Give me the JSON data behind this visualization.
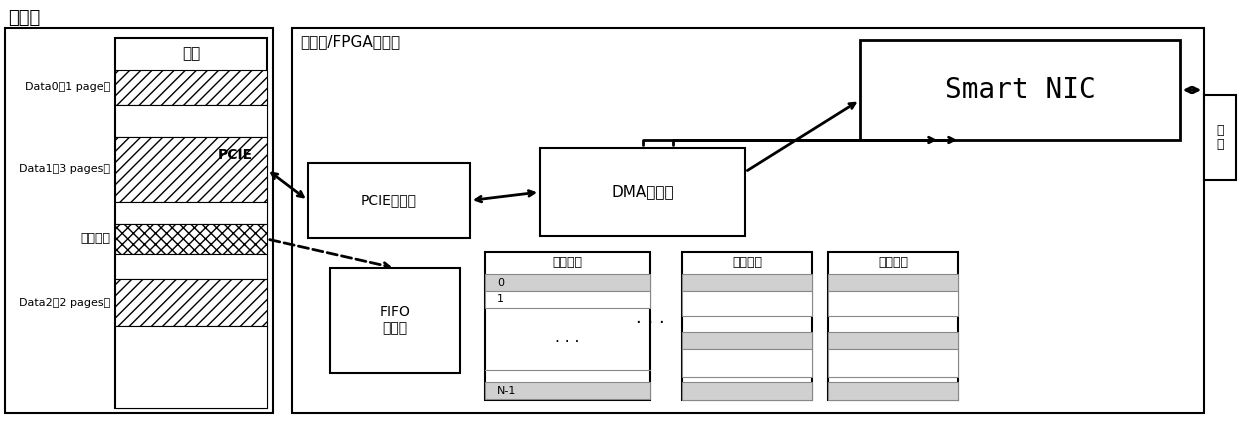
{
  "bg_color": "#ffffff",
  "title_host": "主机端",
  "title_board": "板卡端/FPGA加速卡",
  "title_network": "网\n络",
  "mem_label": "主存",
  "data0_label": "Data0（1 page）",
  "data1_label": "Data1（3 pages）",
  "desc_label": "描述符表",
  "data2_label": "Data2（2 pages）",
  "pcie_label": "PCIE",
  "pcie_ctrl_label": "PCIE控制器",
  "dma_ctrl_label": "DMA控制器",
  "smart_nic_label": "Smart NIC",
  "fifo_label": "FIFO\n存储器",
  "desc_table_label": "描述符表",
  "row0_label": "0",
  "row1_label": "1",
  "rowN_label": "N-1",
  "dots": ". . ."
}
